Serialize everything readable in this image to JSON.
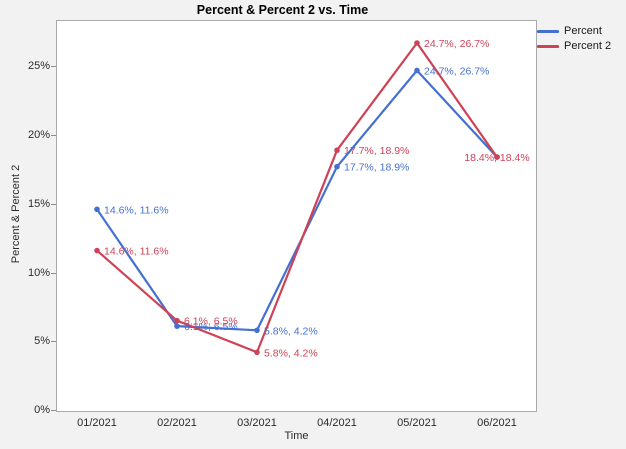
{
  "title": "Percent & Percent 2 vs. Time",
  "chart_data": {
    "type": "line",
    "title": "Percent & Percent 2 vs. Time",
    "xlabel": "Time",
    "ylabel": "Percent & Percent 2",
    "x": [
      "01/2021",
      "02/2021",
      "03/2021",
      "04/2021",
      "05/2021",
      "06/2021"
    ],
    "series": [
      {
        "name": "Percent",
        "color": "#4470d2",
        "values": [
          14.6,
          6.1,
          5.8,
          17.7,
          24.7,
          18.4
        ]
      },
      {
        "name": "Percent 2",
        "color": "#cf4256",
        "values": [
          11.6,
          6.5,
          4.2,
          18.9,
          26.7,
          18.4
        ]
      }
    ],
    "point_labels": [
      "14.6%, 11.6%",
      "6.1%, 6.5%",
      "5.8%, 4.2%",
      "17.7%, 18.9%",
      "24.7%, 26.7%",
      "18.4%, 18.4%"
    ],
    "y_ticks": [
      "0%",
      "5%",
      "10%",
      "15%",
      "20%",
      "25%"
    ],
    "y_tick_values": [
      0,
      5,
      10,
      15,
      20,
      25
    ],
    "ylim": [
      0,
      28.3
    ],
    "grid": false,
    "legend": {
      "position": "top-right",
      "entries": [
        "Percent",
        "Percent 2"
      ]
    }
  },
  "colors": {
    "background": "#f2f2f2",
    "plot_background": "#ffffff",
    "frame": "#a8a8a8",
    "tick_text": "#2b2b2b",
    "series_blue": "#4470d2",
    "series_red": "#cf4256"
  }
}
